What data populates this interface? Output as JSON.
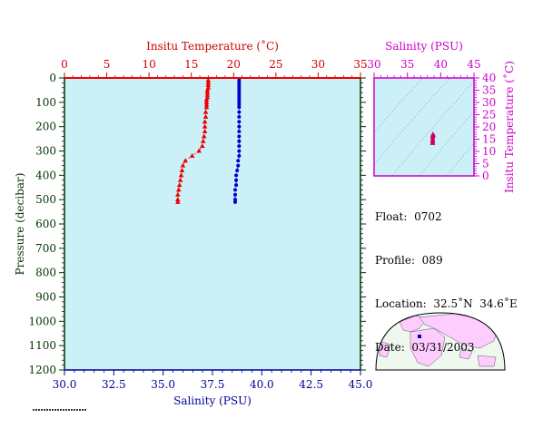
{
  "chart_data": [
    {
      "type": "scatter",
      "top_axis": {
        "label": "Insitu Temperature (˚C)",
        "ticks": [
          0,
          5,
          10,
          15,
          20,
          25,
          30,
          35
        ],
        "range": [
          0,
          35
        ],
        "color": "#cc0000"
      },
      "bottom_axis": {
        "label": "Salinity (PSU)",
        "ticks": [
          "30.0",
          "32.5",
          "35.0",
          "37.5",
          "40.0",
          "42.5",
          "45.0"
        ],
        "range": [
          30,
          45
        ],
        "color": "#000099"
      },
      "left_axis": {
        "label": "Pressure (decibar)",
        "ticks": [
          0,
          100,
          200,
          300,
          400,
          500,
          600,
          700,
          800,
          900,
          1000,
          1100,
          1200
        ],
        "range": [
          0,
          1200
        ],
        "inverted": true,
        "color": "#003300"
      },
      "plot_background": "#ccf0f8",
      "series": [
        {
          "kind": "temperature",
          "marker": "triangle",
          "color": "#ee0000",
          "points": [
            [
              17.0,
              10
            ],
            [
              17.0,
              20
            ],
            [
              17.0,
              30
            ],
            [
              17.0,
              40
            ],
            [
              16.9,
              50
            ],
            [
              16.9,
              60
            ],
            [
              16.9,
              70
            ],
            [
              16.9,
              80
            ],
            [
              16.8,
              90
            ],
            [
              16.8,
              100
            ],
            [
              16.8,
              110
            ],
            [
              16.8,
              120
            ],
            [
              16.7,
              140
            ],
            [
              16.7,
              160
            ],
            [
              16.6,
              180
            ],
            [
              16.6,
              200
            ],
            [
              16.6,
              220
            ],
            [
              16.5,
              240
            ],
            [
              16.4,
              260
            ],
            [
              16.3,
              280
            ],
            [
              15.9,
              300
            ],
            [
              15.1,
              320
            ],
            [
              14.3,
              340
            ],
            [
              14.0,
              360
            ],
            [
              13.9,
              380
            ],
            [
              13.8,
              400
            ],
            [
              13.7,
              420
            ],
            [
              13.6,
              440
            ],
            [
              13.5,
              460
            ],
            [
              13.4,
              480
            ],
            [
              13.4,
              500
            ],
            [
              13.4,
              510
            ]
          ]
        },
        {
          "kind": "salinity",
          "marker": "circle",
          "color": "#0000cc",
          "points": [
            [
              38.85,
              10
            ],
            [
              38.85,
              20
            ],
            [
              38.85,
              30
            ],
            [
              38.85,
              40
            ],
            [
              38.85,
              50
            ],
            [
              38.85,
              60
            ],
            [
              38.85,
              70
            ],
            [
              38.85,
              80
            ],
            [
              38.85,
              90
            ],
            [
              38.85,
              100
            ],
            [
              38.85,
              110
            ],
            [
              38.85,
              120
            ],
            [
              38.85,
              140
            ],
            [
              38.85,
              160
            ],
            [
              38.85,
              180
            ],
            [
              38.85,
              200
            ],
            [
              38.85,
              220
            ],
            [
              38.85,
              240
            ],
            [
              38.85,
              260
            ],
            [
              38.85,
              280
            ],
            [
              38.85,
              300
            ],
            [
              38.85,
              320
            ],
            [
              38.8,
              340
            ],
            [
              38.8,
              360
            ],
            [
              38.75,
              380
            ],
            [
              38.7,
              400
            ],
            [
              38.7,
              420
            ],
            [
              38.7,
              440
            ],
            [
              38.65,
              460
            ],
            [
              38.65,
              480
            ],
            [
              38.65,
              500
            ],
            [
              38.65,
              510
            ]
          ]
        }
      ]
    },
    {
      "type": "scatter",
      "top_axis": {
        "label": "Salinity (PSU)",
        "ticks": [
          30,
          35,
          40,
          45
        ],
        "range": [
          30,
          45
        ],
        "color": "#cc00cc"
      },
      "right_axis": {
        "label": "Insitu Temperature (˚C)",
        "ticks": [
          0,
          5,
          10,
          15,
          20,
          25,
          30,
          35,
          40
        ],
        "range": [
          0,
          40
        ],
        "color": "#cc00cc"
      },
      "plot_background": "#ccf0f8",
      "marker": "triangle",
      "marker_color": "#cc0066",
      "points": [
        [
          38.8,
          13.4
        ],
        [
          38.8,
          14.0
        ],
        [
          38.8,
          14.5
        ],
        [
          38.8,
          15.1
        ],
        [
          38.8,
          15.9
        ],
        [
          38.85,
          16.4
        ],
        [
          38.85,
          16.6
        ],
        [
          38.85,
          16.8
        ],
        [
          38.85,
          17.0
        ]
      ]
    }
  ],
  "info": {
    "float_label": "Float:",
    "float_value": "0702",
    "profile_label": "Profile:",
    "profile_value": "089",
    "location_label": "Location:",
    "location_value": "32.5˚N  34.6˚E",
    "date_label": "Date:",
    "date_value": "03/31/2003"
  },
  "map": {
    "land_color": "#ffccff",
    "ocean_color": "#eef8ee",
    "marker_color": "#0000cc"
  }
}
